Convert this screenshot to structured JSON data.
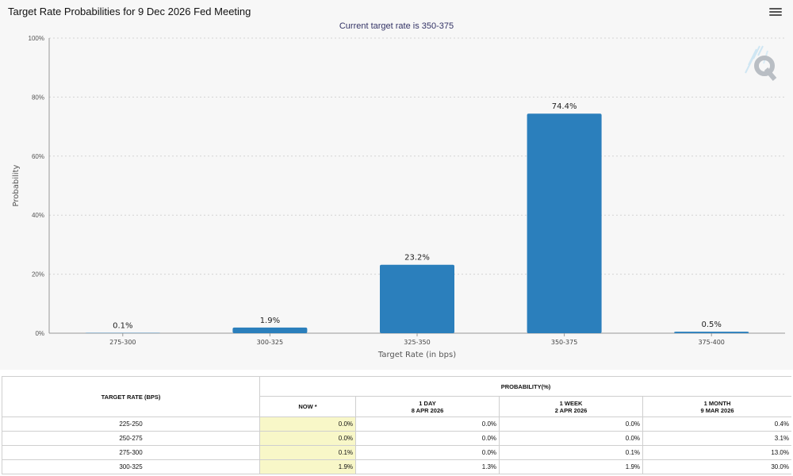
{
  "chart_data": {
    "type": "bar",
    "title": "Target Rate Probabilities for 9 Dec 2026 Fed Meeting",
    "subtitle": "Current target rate is 350-375",
    "xlabel": "Target Rate (in bps)",
    "ylabel": "Probability",
    "categories": [
      "275-300",
      "300-325",
      "325-350",
      "350-375",
      "375-400"
    ],
    "values": [
      0.1,
      1.9,
      23.2,
      74.4,
      0.5
    ],
    "value_labels": [
      "0.1%",
      "1.9%",
      "23.2%",
      "74.4%",
      "0.5%"
    ],
    "yticks": [
      "0%",
      "20%",
      "40%",
      "60%",
      "80%",
      "100%"
    ],
    "ylim": [
      0,
      100
    ],
    "bar_color": "#2b7fbc",
    "grid": true
  },
  "table": {
    "header_rate": "TARGET RATE (BPS)",
    "header_prob": "PROBABILITY(%)",
    "columns": [
      {
        "line1": "NOW *",
        "line2": ""
      },
      {
        "line1": "1 DAY",
        "line2": "8 APR 2026"
      },
      {
        "line1": "1 WEEK",
        "line2": "2 APR 2026"
      },
      {
        "line1": "1 MONTH",
        "line2": "9 MAR 2026"
      }
    ],
    "rows": [
      {
        "rate": "225-250",
        "values": [
          "0.0%",
          "0.0%",
          "0.0%",
          "0.4%"
        ]
      },
      {
        "rate": "250-275",
        "values": [
          "0.0%",
          "0.0%",
          "0.0%",
          "3.1%"
        ]
      },
      {
        "rate": "275-300",
        "values": [
          "0.1%",
          "0.0%",
          "0.1%",
          "13.0%"
        ]
      },
      {
        "rate": "300-325",
        "values": [
          "1.9%",
          "1.3%",
          "1.9%",
          "30.0%"
        ]
      }
    ]
  },
  "colors": {
    "accent": "#2b7fbc",
    "now_highlight": "#f8f7c8"
  }
}
